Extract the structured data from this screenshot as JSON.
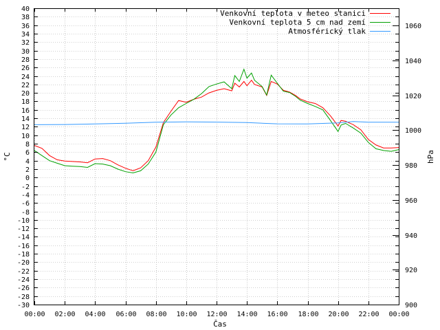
{
  "chart_data": {
    "type": "line",
    "xlabel": "Čas",
    "ylabel": "°C",
    "y2label": "hPa",
    "grid": true,
    "legend_position": "top-right",
    "xlim": [
      0,
      24
    ],
    "ylim": [
      -30,
      40
    ],
    "y2lim": [
      900,
      1070
    ],
    "x_ticks": [
      "00:00",
      "02:00",
      "04:00",
      "06:00",
      "08:00",
      "10:00",
      "12:00",
      "14:00",
      "16:00",
      "18:00",
      "20:00",
      "22:00",
      "00:00"
    ],
    "y_ticks": [
      40,
      38,
      36,
      34,
      32,
      30,
      28,
      26,
      24,
      22,
      20,
      18,
      16,
      14,
      12,
      10,
      8,
      6,
      4,
      2,
      0,
      -2,
      -4,
      -6,
      -8,
      -10,
      -12,
      -14,
      -16,
      -18,
      -20,
      -22,
      -24,
      -26,
      -28,
      -30
    ],
    "y2_ticks": [
      1060,
      1040,
      1020,
      1000,
      980,
      960,
      940,
      920,
      900
    ],
    "series": [
      {
        "name": "Venkovní teplota v meteo stanici",
        "color": "#ff0000",
        "axis": "left",
        "points": [
          [
            0,
            7.6
          ],
          [
            0.5,
            6.9
          ],
          [
            1,
            5.2
          ],
          [
            1.5,
            4.2
          ],
          [
            2,
            3.9
          ],
          [
            2.5,
            3.8
          ],
          [
            3,
            3.7
          ],
          [
            3.5,
            3.5
          ],
          [
            4,
            4.4
          ],
          [
            4.5,
            4.5
          ],
          [
            5,
            4
          ],
          [
            5.5,
            3
          ],
          [
            6,
            2.2
          ],
          [
            6.5,
            1.6
          ],
          [
            7,
            2.3
          ],
          [
            7.5,
            4
          ],
          [
            8,
            7.2
          ],
          [
            8.5,
            13
          ],
          [
            9,
            15.7
          ],
          [
            9.5,
            18.2
          ],
          [
            10,
            17.8
          ],
          [
            10.5,
            18.5
          ],
          [
            11,
            19
          ],
          [
            11.5,
            20
          ],
          [
            12,
            20.6
          ],
          [
            12.5,
            21
          ],
          [
            13,
            20.5
          ],
          [
            13.2,
            22.3
          ],
          [
            13.5,
            21.4
          ],
          [
            13.8,
            22.7
          ],
          [
            14,
            21.7
          ],
          [
            14.3,
            23
          ],
          [
            14.5,
            22
          ],
          [
            15,
            21.4
          ],
          [
            15.3,
            19.4
          ],
          [
            15.6,
            22.7
          ],
          [
            16,
            22.1
          ],
          [
            16.4,
            20.6
          ],
          [
            16.8,
            20.2
          ],
          [
            17.2,
            19.4
          ],
          [
            17.5,
            18.6
          ],
          [
            18,
            17.9
          ],
          [
            18.5,
            17.5
          ],
          [
            19,
            16.5
          ],
          [
            19.5,
            14.6
          ],
          [
            20,
            12.2
          ],
          [
            20.2,
            13.5
          ],
          [
            20.5,
            13.3
          ],
          [
            21,
            12.5
          ],
          [
            21.5,
            11.3
          ],
          [
            22,
            9
          ],
          [
            22.5,
            7.7
          ],
          [
            23,
            7
          ],
          [
            23.5,
            7
          ],
          [
            24,
            7.1
          ]
        ]
      },
      {
        "name": "Venkovní teplota 5 cm nad zemí",
        "color": "#00a000",
        "axis": "left",
        "points": [
          [
            0,
            6.4
          ],
          [
            0.5,
            5.2
          ],
          [
            1,
            4
          ],
          [
            1.5,
            3.4
          ],
          [
            2,
            2.8
          ],
          [
            2.5,
            2.7
          ],
          [
            3,
            2.6
          ],
          [
            3.5,
            2.4
          ],
          [
            4,
            3.3
          ],
          [
            4.5,
            3.2
          ],
          [
            5,
            2.8
          ],
          [
            5.5,
            2
          ],
          [
            6,
            1.4
          ],
          [
            6.5,
            1.1
          ],
          [
            7,
            1.6
          ],
          [
            7.5,
            3.2
          ],
          [
            8,
            6
          ],
          [
            8.5,
            12.5
          ],
          [
            9,
            14.8
          ],
          [
            9.5,
            16.5
          ],
          [
            10,
            17.5
          ],
          [
            10.5,
            18.5
          ],
          [
            11,
            19.8
          ],
          [
            11.5,
            21.5
          ],
          [
            12,
            22.1
          ],
          [
            12.5,
            22.6
          ],
          [
            13,
            21
          ],
          [
            13.2,
            24.1
          ],
          [
            13.5,
            22.7
          ],
          [
            13.8,
            25.6
          ],
          [
            14,
            23.5
          ],
          [
            14.3,
            24.7
          ],
          [
            14.5,
            23
          ],
          [
            15,
            21.5
          ],
          [
            15.3,
            19.5
          ],
          [
            15.6,
            24.2
          ],
          [
            16,
            22.3
          ],
          [
            16.4,
            20.4
          ],
          [
            16.8,
            20.1
          ],
          [
            17.2,
            19.2
          ],
          [
            17.5,
            18.3
          ],
          [
            18,
            17.5
          ],
          [
            18.5,
            16.8
          ],
          [
            19,
            16
          ],
          [
            19.5,
            13.5
          ],
          [
            20,
            10.9
          ],
          [
            20.2,
            12.4
          ],
          [
            20.5,
            12.8
          ],
          [
            21,
            11.7
          ],
          [
            21.5,
            10.5
          ],
          [
            22,
            8.3
          ],
          [
            22.5,
            6.8
          ],
          [
            23,
            6.4
          ],
          [
            23.5,
            6.2
          ],
          [
            24,
            6.6
          ]
        ]
      },
      {
        "name": "Atmosférický tlak",
        "color": "#3399ff",
        "axis": "right",
        "points": [
          [
            0,
            1003.2
          ],
          [
            2,
            1003.3
          ],
          [
            4,
            1003.6
          ],
          [
            6,
            1004
          ],
          [
            8,
            1004.6
          ],
          [
            10,
            1004.8
          ],
          [
            12,
            1004.7
          ],
          [
            14,
            1004.4
          ],
          [
            16,
            1003.7
          ],
          [
            18,
            1003.6
          ],
          [
            20,
            1004.2
          ],
          [
            21,
            1005
          ],
          [
            22,
            1004.6
          ],
          [
            24,
            1004.6
          ]
        ]
      }
    ]
  }
}
